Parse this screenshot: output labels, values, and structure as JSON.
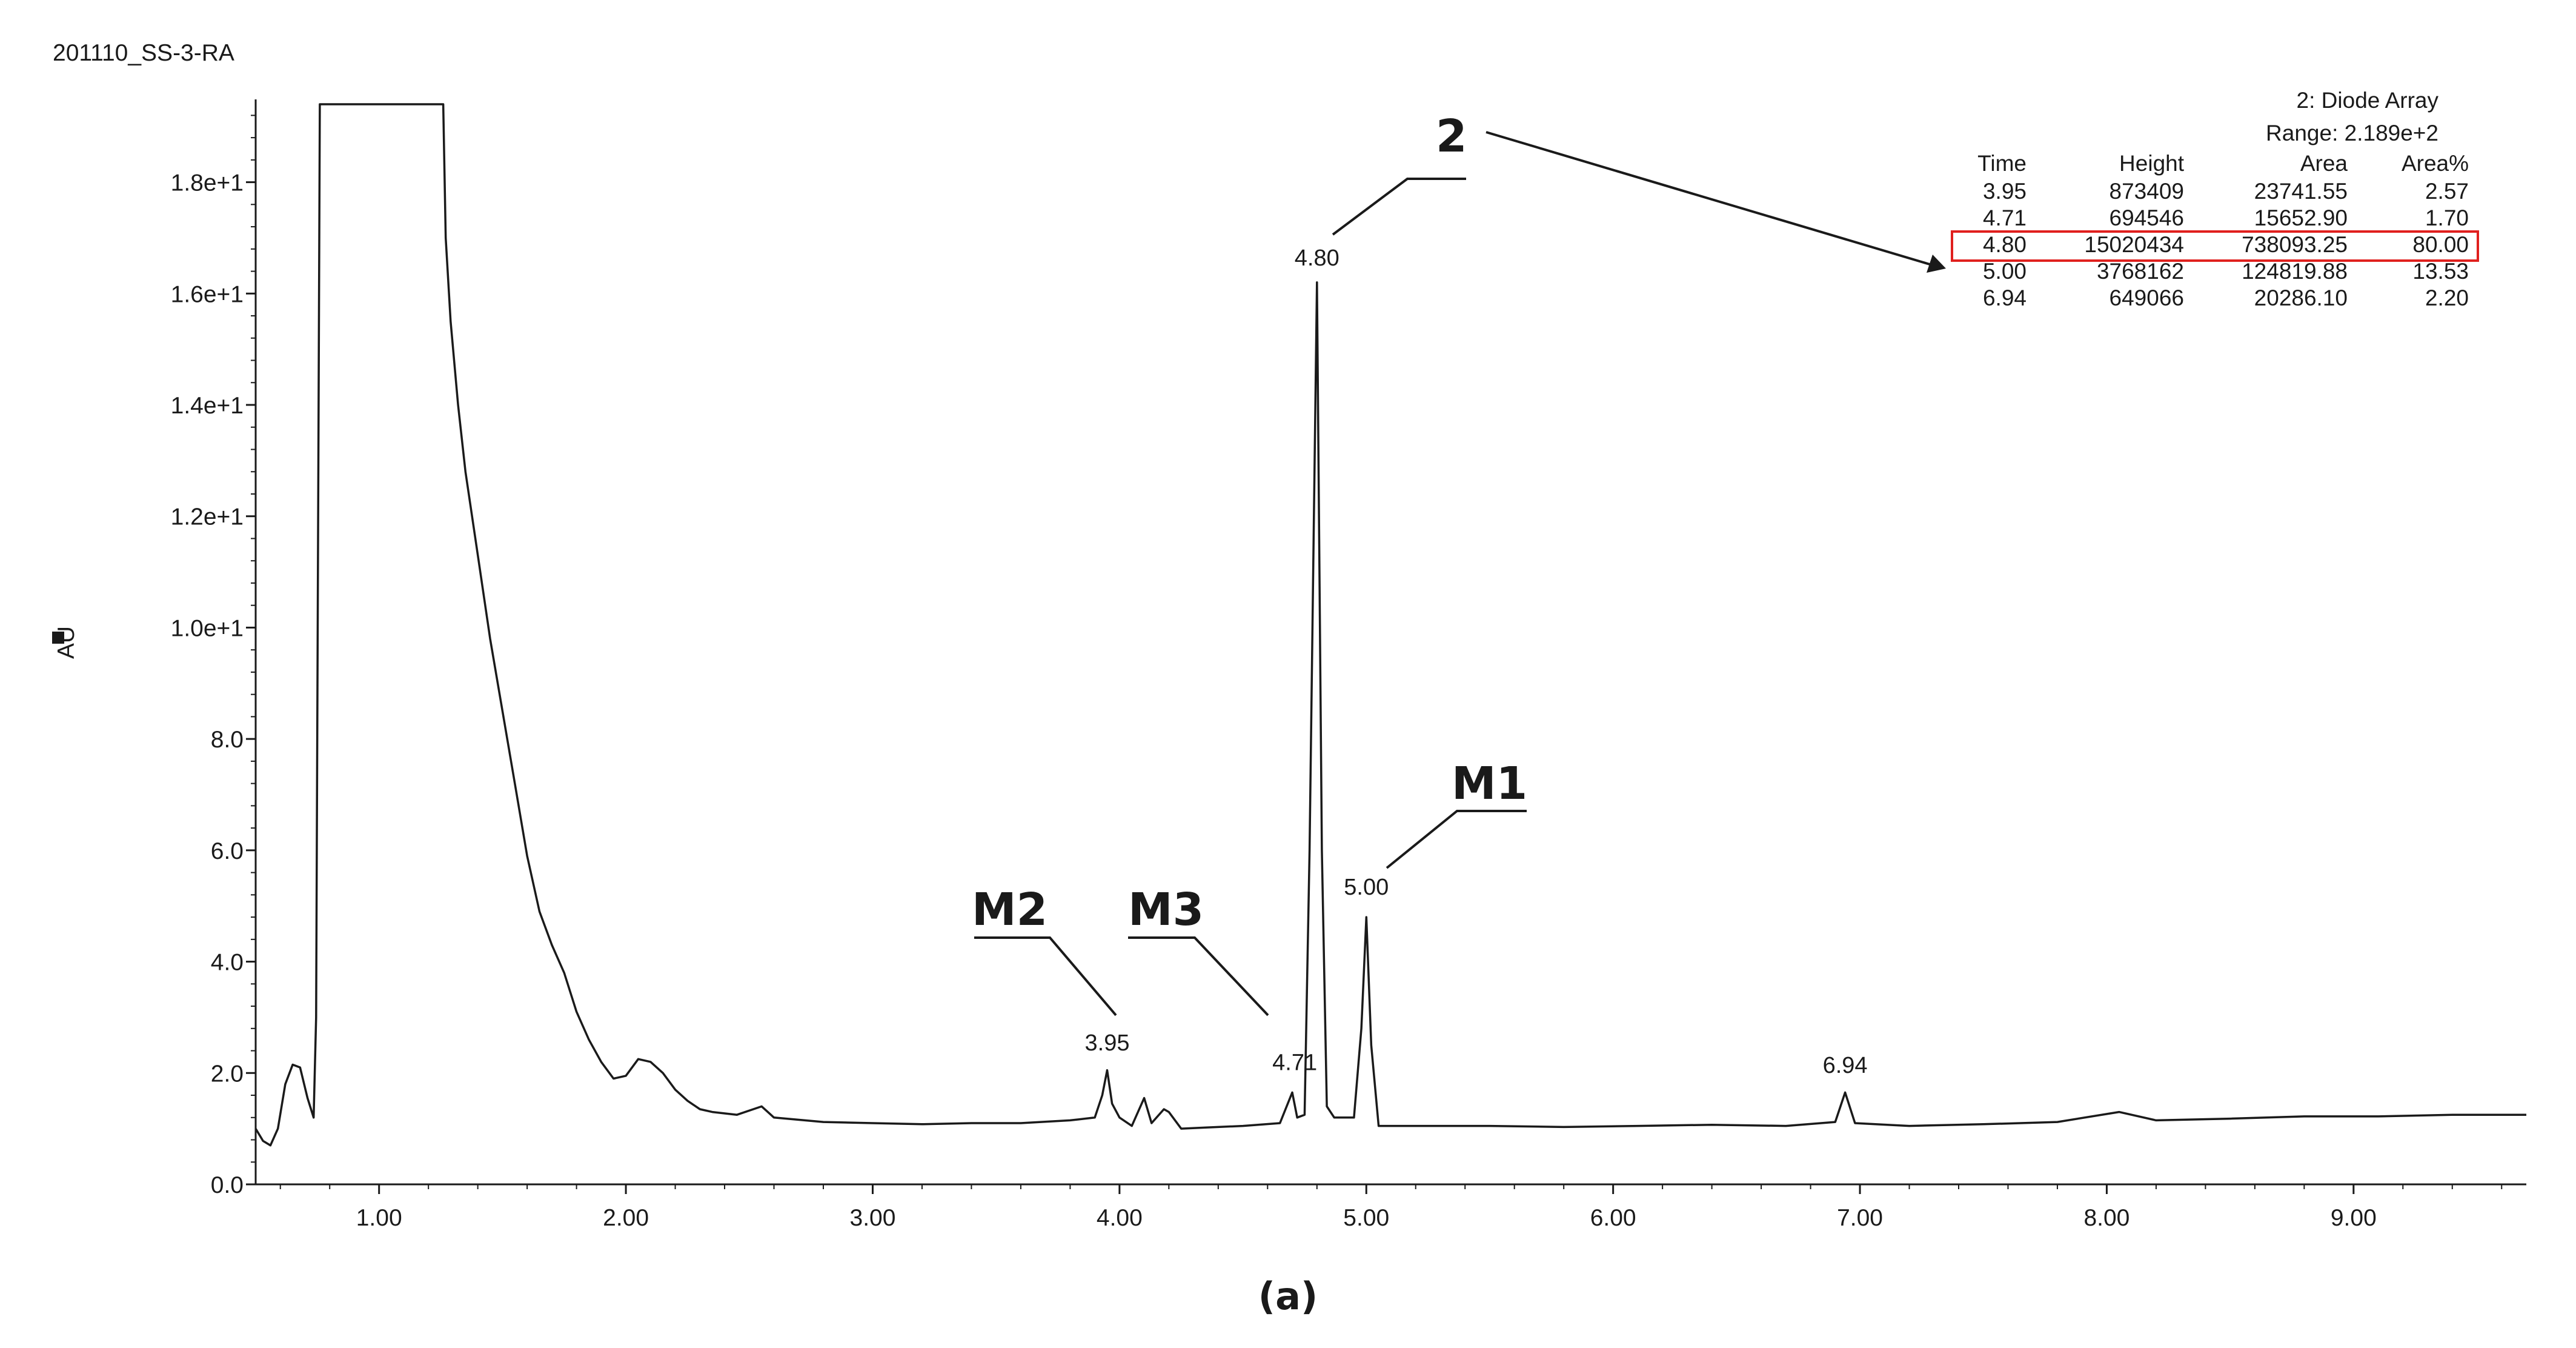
{
  "sample_id": "201110_SS-3-RA",
  "panel_label": "(a)",
  "detector": {
    "title": "2: Diode Array",
    "range": "Range: 2.189e+2"
  },
  "peak_table": {
    "headers": [
      "Time",
      "Height",
      "Area",
      "Area%"
    ],
    "rows": [
      [
        "3.95",
        "873409",
        "23741.55",
        "2.57"
      ],
      [
        "4.71",
        "694546",
        "15652.90",
        "1.70"
      ],
      [
        "4.80",
        "15020434",
        "738093.25",
        "80.00"
      ],
      [
        "5.00",
        "3768162",
        "124819.88",
        "13.53"
      ],
      [
        "6.94",
        "649066",
        "20286.10",
        "2.20"
      ]
    ],
    "highlighted_row": 2,
    "highlight_color": "#e0201e"
  },
  "markers": [
    {
      "label": "2",
      "peak_time": 4.8
    },
    {
      "label": "M1",
      "peak_time": 5.0
    },
    {
      "label": "M2",
      "peak_time": 3.95
    },
    {
      "label": "M3",
      "peak_time": 4.71
    }
  ],
  "chart_data": {
    "type": "line",
    "title": "",
    "xlabel": "",
    "ylabel": "AU",
    "xlim": [
      0.5,
      9.7
    ],
    "ylim": [
      0,
      19.4
    ],
    "x_ticks": [
      1.0,
      2.0,
      3.0,
      4.0,
      5.0,
      6.0,
      7.0,
      8.0,
      9.0
    ],
    "x_tick_labels": [
      "1.00",
      "2.00",
      "3.00",
      "4.00",
      "5.00",
      "6.00",
      "7.00",
      "8.00",
      "9.00"
    ],
    "y_ticks": [
      0,
      2,
      4,
      6,
      8,
      10,
      12,
      14,
      16,
      18
    ],
    "y_tick_labels": [
      "0.0",
      "2.0",
      "4.0",
      "6.0",
      "8.0",
      "1.0e+1",
      "1.2e+1",
      "1.4e+1",
      "1.6e+1",
      "1.8e+1"
    ],
    "line_color": "#1a1a1a",
    "peak_labels": [
      {
        "x": 3.95,
        "y": 2.1,
        "text": "3.95"
      },
      {
        "x": 4.71,
        "y": 1.75,
        "text": "4.71"
      },
      {
        "x": 4.8,
        "y": 16.2,
        "text": "4.80"
      },
      {
        "x": 5.0,
        "y": 4.9,
        "text": "5.00"
      },
      {
        "x": 6.94,
        "y": 1.7,
        "text": "6.94"
      }
    ],
    "series": [
      {
        "points": [
          [
            0.5,
            1.0
          ],
          [
            0.53,
            0.78
          ],
          [
            0.56,
            0.7
          ],
          [
            0.59,
            1.0
          ],
          [
            0.62,
            1.8
          ],
          [
            0.65,
            2.15
          ],
          [
            0.68,
            2.1
          ],
          [
            0.71,
            1.55
          ],
          [
            0.735,
            1.2
          ],
          [
            0.745,
            3.0
          ],
          [
            0.76,
            19.4
          ],
          [
            1.26,
            19.4
          ],
          [
            1.27,
            17.0
          ],
          [
            1.29,
            15.5
          ],
          [
            1.32,
            14.0
          ],
          [
            1.35,
            12.8
          ],
          [
            1.4,
            11.3
          ],
          [
            1.45,
            9.8
          ],
          [
            1.5,
            8.5
          ],
          [
            1.55,
            7.2
          ],
          [
            1.6,
            5.9
          ],
          [
            1.65,
            4.9
          ],
          [
            1.7,
            4.3
          ],
          [
            1.75,
            3.8
          ],
          [
            1.8,
            3.1
          ],
          [
            1.85,
            2.6
          ],
          [
            1.9,
            2.2
          ],
          [
            1.95,
            1.9
          ],
          [
            2.0,
            1.95
          ],
          [
            2.05,
            2.25
          ],
          [
            2.1,
            2.2
          ],
          [
            2.15,
            2.0
          ],
          [
            2.2,
            1.7
          ],
          [
            2.25,
            1.5
          ],
          [
            2.3,
            1.35
          ],
          [
            2.35,
            1.3
          ],
          [
            2.45,
            1.25
          ],
          [
            2.55,
            1.4
          ],
          [
            2.6,
            1.2
          ],
          [
            2.8,
            1.12
          ],
          [
            3.0,
            1.1
          ],
          [
            3.2,
            1.08
          ],
          [
            3.4,
            1.1
          ],
          [
            3.6,
            1.1
          ],
          [
            3.8,
            1.15
          ],
          [
            3.9,
            1.2
          ],
          [
            3.93,
            1.6
          ],
          [
            3.95,
            2.05
          ],
          [
            3.97,
            1.45
          ],
          [
            4.0,
            1.2
          ],
          [
            4.05,
            1.05
          ],
          [
            4.1,
            1.55
          ],
          [
            4.13,
            1.1
          ],
          [
            4.18,
            1.35
          ],
          [
            4.2,
            1.3
          ],
          [
            4.25,
            1.0
          ],
          [
            4.35,
            1.02
          ],
          [
            4.5,
            1.05
          ],
          [
            4.65,
            1.1
          ],
          [
            4.7,
            1.65
          ],
          [
            4.72,
            1.2
          ],
          [
            4.75,
            1.25
          ],
          [
            4.77,
            6.0
          ],
          [
            4.8,
            16.2
          ],
          [
            4.82,
            6.0
          ],
          [
            4.84,
            1.4
          ],
          [
            4.87,
            1.2
          ],
          [
            4.95,
            1.2
          ],
          [
            4.98,
            2.8
          ],
          [
            5.0,
            4.8
          ],
          [
            5.02,
            2.5
          ],
          [
            5.05,
            1.05
          ],
          [
            5.2,
            1.05
          ],
          [
            5.5,
            1.05
          ],
          [
            5.8,
            1.03
          ],
          [
            6.1,
            1.05
          ],
          [
            6.4,
            1.07
          ],
          [
            6.7,
            1.05
          ],
          [
            6.9,
            1.12
          ],
          [
            6.94,
            1.65
          ],
          [
            6.98,
            1.1
          ],
          [
            7.2,
            1.05
          ],
          [
            7.5,
            1.08
          ],
          [
            7.8,
            1.12
          ],
          [
            8.05,
            1.3
          ],
          [
            8.2,
            1.15
          ],
          [
            8.5,
            1.18
          ],
          [
            8.8,
            1.22
          ],
          [
            9.1,
            1.22
          ],
          [
            9.4,
            1.25
          ],
          [
            9.7,
            1.25
          ]
        ]
      }
    ]
  }
}
